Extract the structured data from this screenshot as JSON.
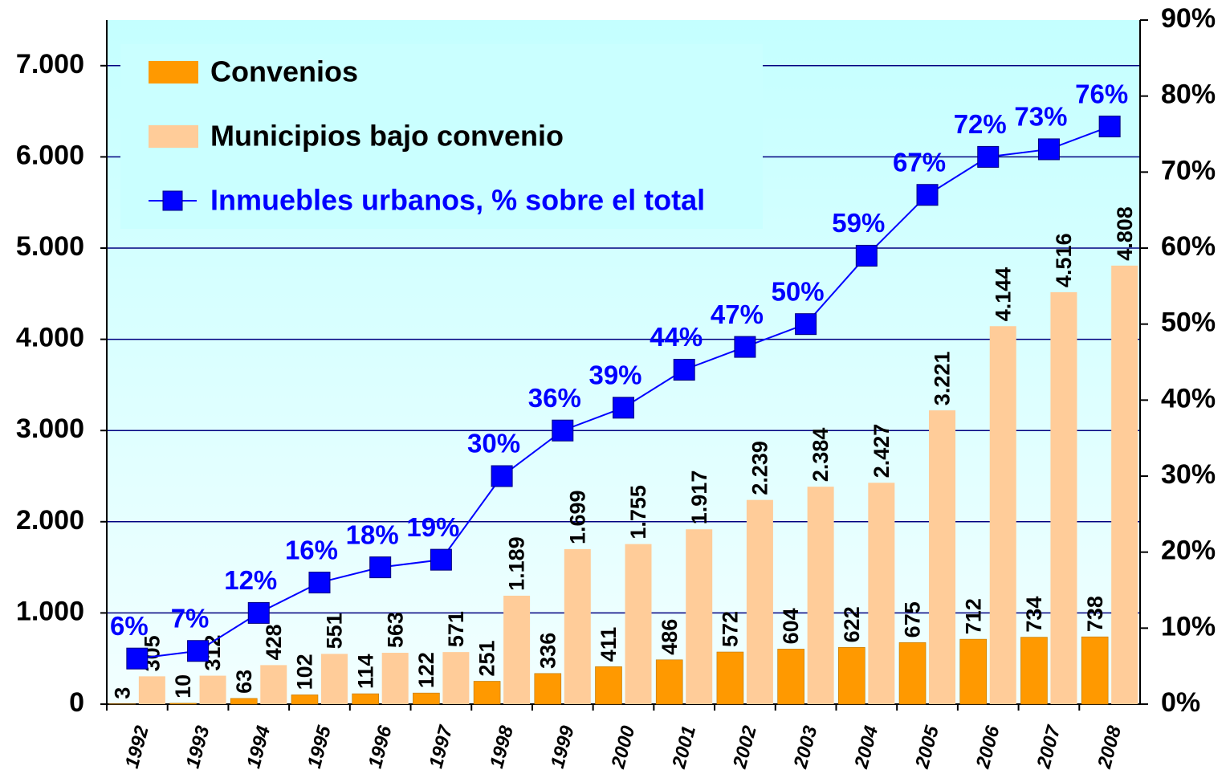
{
  "chart_data": {
    "type": "bar",
    "categories": [
      "1992",
      "1993",
      "1994",
      "1995",
      "1996",
      "1997",
      "1998",
      "1999",
      "2000",
      "2001",
      "2002",
      "2003",
      "2004",
      "2005",
      "2006",
      "2007",
      "2008"
    ],
    "series": [
      {
        "name": "Convenios",
        "color": "#ff9900",
        "values": [
          3,
          10,
          63,
          102,
          114,
          122,
          251,
          336,
          411,
          486,
          572,
          604,
          622,
          675,
          712,
          734,
          738
        ]
      },
      {
        "name": "Municipios bajo convenio",
        "color": "#ffcc99",
        "values": [
          305,
          312,
          428,
          551,
          563,
          571,
          1189,
          1699,
          1755,
          1917,
          2239,
          2384,
          2427,
          3221,
          4144,
          4516,
          4808
        ],
        "value_labels": [
          "305",
          "312",
          "428",
          "551",
          "563",
          "571",
          "1.189",
          "1.699",
          "1.755",
          "1.917",
          "2.239",
          "2.384",
          "2.427",
          "3.221",
          "4.144",
          "4.516",
          "4.808"
        ]
      },
      {
        "name": "Inmuebles urbanos, % sobre el total",
        "color": "#0000ff",
        "type": "line",
        "axis": "y2",
        "values": [
          6,
          7,
          12,
          16,
          18,
          19,
          30,
          36,
          39,
          44,
          47,
          50,
          59,
          67,
          72,
          73,
          76
        ],
        "value_labels": [
          "6%",
          "7%",
          "12%",
          "16%",
          "18%",
          "19%",
          "30%",
          "36%",
          "39%",
          "44%",
          "47%",
          "50%",
          "59%",
          "67%",
          "72%",
          "73%",
          "76%"
        ]
      }
    ],
    "ylim": [
      0,
      7500
    ],
    "yticks": [
      0,
      {
        "value": 1000,
        "label": "1.000"
      },
      {
        "value": 2000,
        "label": "2.000"
      },
      {
        "value": 3000,
        "label": "3.000"
      },
      {
        "value": 4000,
        "label": "4.000"
      },
      {
        "value": 5000,
        "label": "5.000"
      },
      {
        "value": 6000,
        "label": "6.000"
      },
      {
        "value": 7000,
        "label": "7.000"
      }
    ],
    "y2lim": [
      0,
      90
    ],
    "y2ticks": [
      {
        "value": 0,
        "label": "0%"
      },
      {
        "value": 10,
        "label": "10%"
      },
      {
        "value": 20,
        "label": "20%"
      },
      {
        "value": 30,
        "label": "30%"
      },
      {
        "value": 40,
        "label": "40%"
      },
      {
        "value": 50,
        "label": "50%"
      },
      {
        "value": 60,
        "label": "60%"
      },
      {
        "value": 70,
        "label": "70%"
      },
      {
        "value": 80,
        "label": "80%"
      },
      {
        "value": 90,
        "label": "90%"
      }
    ],
    "grid": true,
    "legend": "upper left"
  }
}
